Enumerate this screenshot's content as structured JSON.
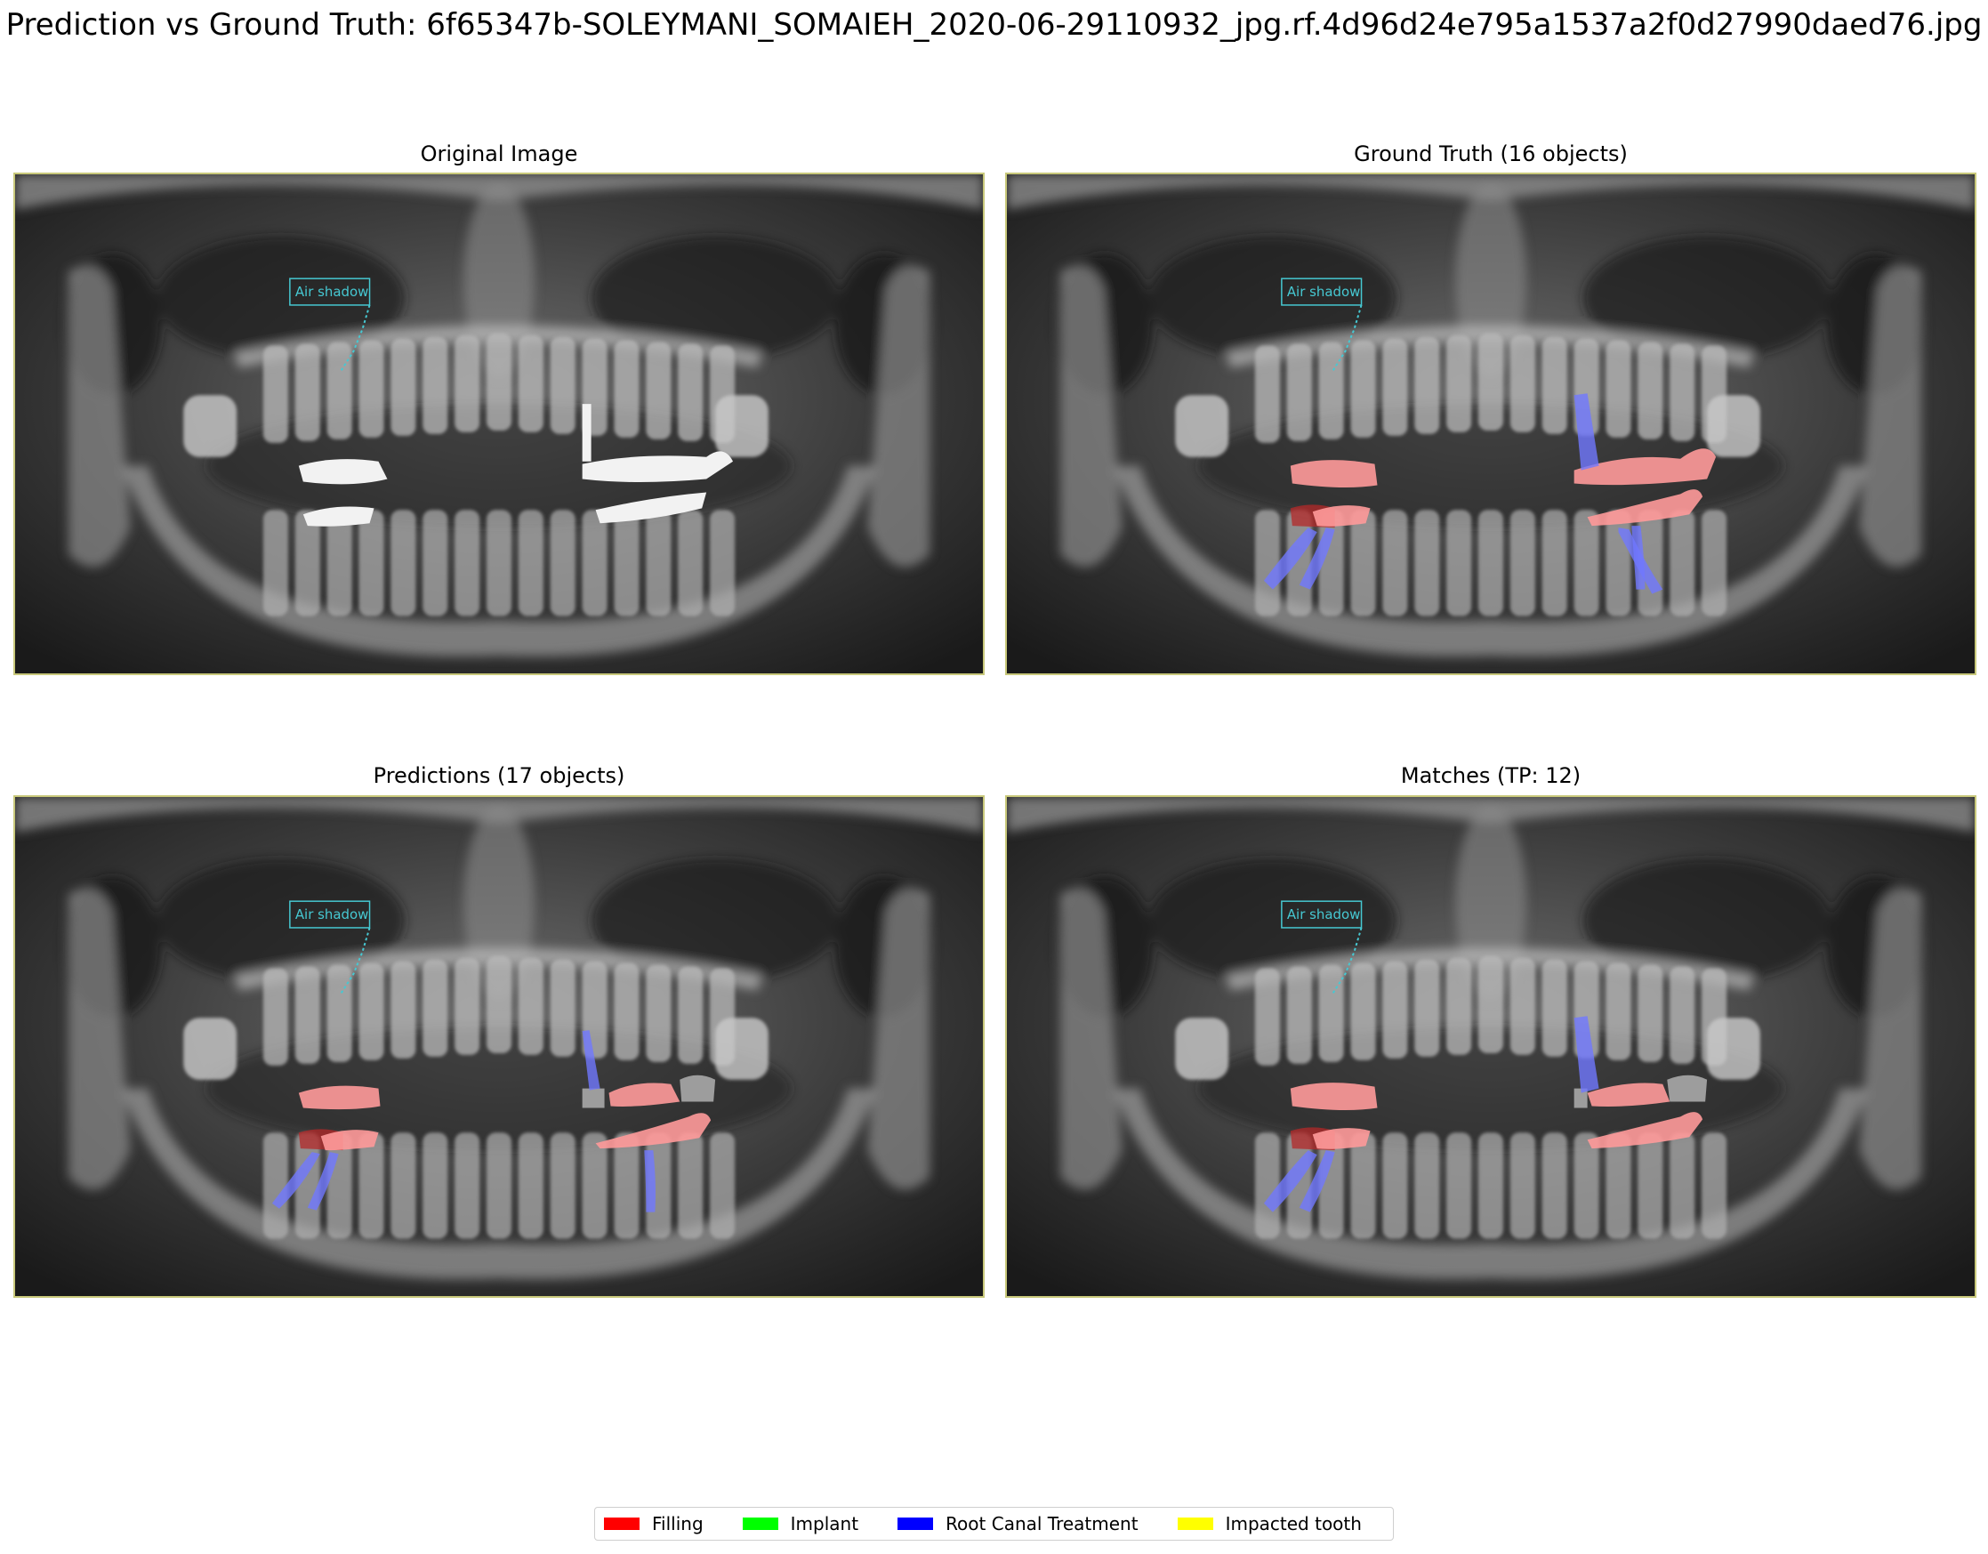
{
  "figure": {
    "title": "Prediction vs Ground Truth: 6f65347b-SOLEYMANI_SOMAIEH_2020-06-29110932_jpg.rf.4d96d24e795a1537a2f0d27990daed76.jpg"
  },
  "panels": [
    {
      "title": "Original Image",
      "overlay": "none"
    },
    {
      "title": "Ground Truth (16 objects)",
      "overlay": "ground-truth"
    },
    {
      "title": "Predictions (17 objects)",
      "overlay": "predictions"
    },
    {
      "title": "Matches (TP: 12)",
      "overlay": "matches"
    }
  ],
  "xray_annotation": {
    "text": "Air shadow",
    "color": "#46c8d2"
  },
  "legend": {
    "items": [
      {
        "label": "Filling",
        "color": "#ff0000"
      },
      {
        "label": "Implant",
        "color": "#00ff00"
      },
      {
        "label": "Root Canal Treatment",
        "color": "#0000ff"
      },
      {
        "label": "Impacted tooth",
        "color": "#ffff00"
      }
    ]
  },
  "overlay_colors": {
    "filling_fill": "#ff9a9a",
    "filling_dark": "#b42828",
    "root_canal_fill": "#7078ff",
    "grey_crown": "#a8a8a8"
  }
}
